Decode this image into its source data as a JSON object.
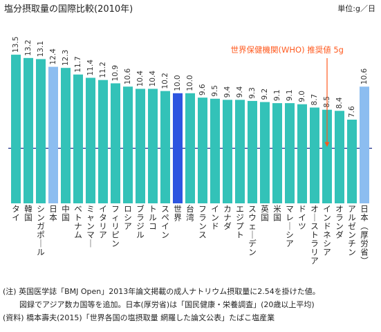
{
  "header": {
    "title": "塩分摂取量の国際比較(2010年)",
    "unit": "単位:g／日"
  },
  "chart_data": {
    "type": "bar",
    "title": "塩分摂取量の国際比較(2010年)",
    "unit": "単位:g／日",
    "categories": [
      "タイ",
      "韓国",
      "シンガポール",
      "日本",
      "中国",
      "ベトナム",
      "ミャンマー",
      "イタリア",
      "フィリピン",
      "ロシア",
      "ブラジル",
      "トルコ",
      "スペイン",
      "世界",
      "台湾",
      "フランス",
      "インド",
      "カナダ",
      "エジプト",
      "スウェーデン",
      "英国",
      "米国",
      "マレーシア",
      "ドイツ",
      "オーストラリア",
      "インドネシア",
      "オランダ",
      "アルゼンチン",
      "日本(厚労省)"
    ],
    "values": [
      13.5,
      13.2,
      13.1,
      12.4,
      12.3,
      11.7,
      11.4,
      11.2,
      10.9,
      10.6,
      10.4,
      10.4,
      10.2,
      10.0,
      10.0,
      9.6,
      9.5,
      9.4,
      9.4,
      9.3,
      9.2,
      9.1,
      9.1,
      9.0,
      8.7,
      8.5,
      8.4,
      7.6,
      10.6
    ],
    "value_labels": [
      "13.5",
      "13.2",
      "13.1",
      "12.4",
      "12.3",
      "11.7",
      "11.4",
      "11.2",
      "10.9",
      "10.6",
      "10.4",
      "10.4",
      "10.2",
      "10.0",
      "10.0",
      "9.6",
      "9.5",
      "9.4",
      "9.4",
      "9.3",
      "9.2",
      "9.1",
      "9.1",
      "9.0",
      "8.7",
      "8.5",
      "8.4",
      "7.6",
      "10.6"
    ],
    "bar_colors": [
      "#33c2b8",
      "#33c2b8",
      "#33c2b8",
      "#8cbdf0",
      "#33c2b8",
      "#33c2b8",
      "#33c2b8",
      "#33c2b8",
      "#33c2b8",
      "#33c2b8",
      "#33c2b8",
      "#33c2b8",
      "#33c2b8",
      "#2d55e0",
      "#33c2b8",
      "#33c2b8",
      "#33c2b8",
      "#33c2b8",
      "#33c2b8",
      "#33c2b8",
      "#33c2b8",
      "#33c2b8",
      "#33c2b8",
      "#33c2b8",
      "#33c2b8",
      "#33c2b8",
      "#33c2b8",
      "#33c2b8",
      "#8cbdf0"
    ],
    "reference_line": {
      "value": 5,
      "label": "世界保健機関(WHO) 推奨値 5g",
      "color": "#1d2f8a",
      "label_color": "#ff5a1f"
    },
    "ylim": [
      0,
      15.2
    ],
    "grid": false
  },
  "notes": [
    "(注) 英国医学誌「BMJ Open」2013年論文掲載の成人ナトリウム摂取量に2.54を掛けた値。",
    "図録でアジア数カ国等を追加。日本(厚労省)は「国民健康・栄養調査」(20歳以上平均)",
    "(資料) 橋本壽夫(2015)「世界各国の塩摂取量 網羅した論文公表」たばこ塩産業"
  ]
}
